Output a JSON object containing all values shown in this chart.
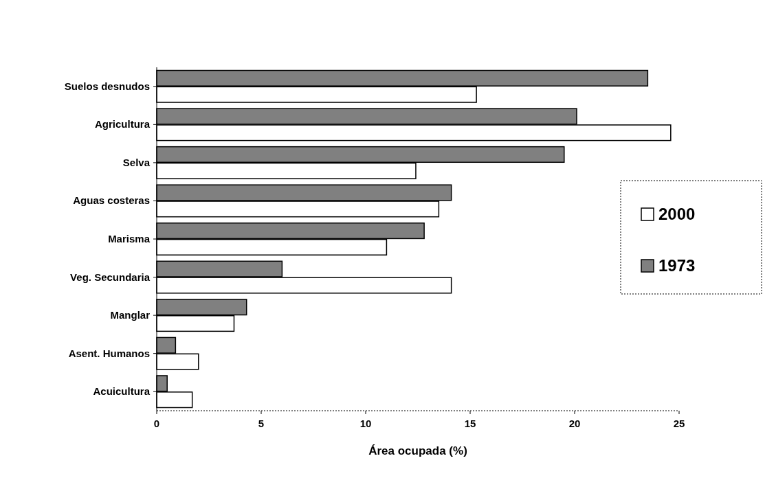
{
  "chart_data": {
    "type": "bar",
    "orientation": "horizontal",
    "xlabel": "Área ocupada (%)",
    "categories": [
      "Suelos desnudos",
      "Agricultura",
      "Selva",
      "Aguas costeras",
      "Marisma",
      "Veg. Secundaria",
      "Manglar",
      "Asent. Humanos",
      "Acuicultura"
    ],
    "series": [
      {
        "name": "1973",
        "color": "#808080",
        "values": [
          23.5,
          20.1,
          19.5,
          14.1,
          12.8,
          6.0,
          4.3,
          0.9,
          0.5
        ]
      },
      {
        "name": "2000",
        "color": "#ffffff",
        "values": [
          15.3,
          24.6,
          12.4,
          13.5,
          11.0,
          14.1,
          3.7,
          2.0,
          1.7
        ]
      }
    ],
    "xlim": [
      0,
      25
    ],
    "xticks": [
      0,
      5,
      10,
      15,
      20,
      25
    ],
    "legend": "right",
    "grid": false
  }
}
